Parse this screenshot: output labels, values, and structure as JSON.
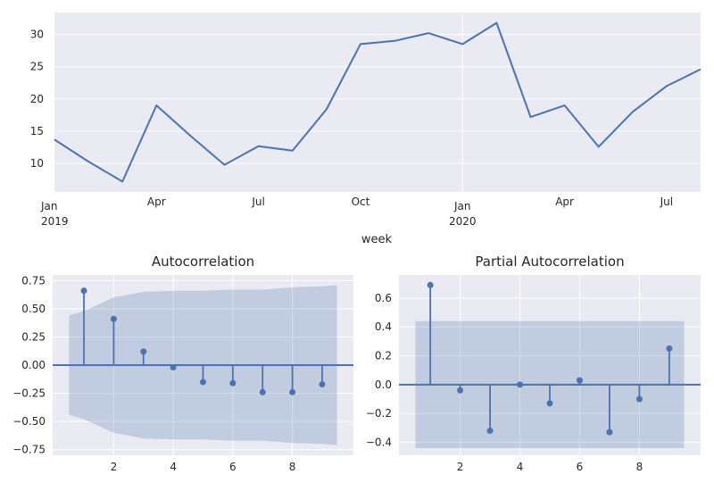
{
  "chart_data": [
    {
      "type": "line",
      "title": "",
      "xlabel": "week",
      "ylabel": "",
      "x": [
        "2019-01",
        "2019-02",
        "2019-03",
        "2019-04",
        "2019-05",
        "2019-06",
        "2019-07",
        "2019-08",
        "2019-09",
        "2019-10",
        "2019-11",
        "2019-12",
        "2020-01",
        "2020-02",
        "2020-03",
        "2020-04",
        "2020-05",
        "2020-06",
        "2020-07",
        "2020-08"
      ],
      "values": [
        13.7,
        10.3,
        7.2,
        19.0,
        14.3,
        9.8,
        12.7,
        12.0,
        18.4,
        28.5,
        29.0,
        30.2,
        28.5,
        31.8,
        17.2,
        19.0,
        12.6,
        18.0,
        22.0,
        24.6
      ],
      "xticks": [
        {
          "label": "Jan",
          "sub": "2019"
        },
        {
          "label": "Apr",
          "sub": ""
        },
        {
          "label": "Jul",
          "sub": ""
        },
        {
          "label": "Oct",
          "sub": ""
        },
        {
          "label": "Jan",
          "sub": "2020"
        },
        {
          "label": "Apr",
          "sub": ""
        },
        {
          "label": "Jul",
          "sub": ""
        }
      ],
      "yticks": [
        10,
        15,
        20,
        25,
        30
      ],
      "ylim": [
        5.6,
        33.4
      ],
      "xlim": [
        "2019-01",
        "2020-08"
      ],
      "grid": true,
      "color": "#4c72b0"
    },
    {
      "type": "stem",
      "title": "Autocorrelation",
      "xlabel": "",
      "ylabel": "",
      "x": [
        1,
        2,
        3,
        4,
        5,
        6,
        7,
        8,
        9
      ],
      "values": [
        0.66,
        0.41,
        0.12,
        -0.02,
        -0.15,
        -0.16,
        -0.24,
        -0.24,
        -0.17
      ],
      "confidence_band": {
        "x": [
          0.5,
          1,
          2,
          3,
          4,
          5,
          6,
          7,
          8,
          9,
          9.5
        ],
        "upper": [
          0.44,
          0.48,
          0.6,
          0.65,
          0.66,
          0.66,
          0.67,
          0.67,
          0.69,
          0.7,
          0.71
        ]
      },
      "xticks": [
        2,
        4,
        6,
        8
      ],
      "yticks": [
        "0.75",
        "0.50",
        "0.25",
        "0.00",
        "−0.25",
        "−0.50",
        "−0.75"
      ],
      "xlim": [
        -0.05,
        10.05
      ],
      "ylim": [
        -0.8,
        0.8
      ],
      "grid": true,
      "color": "#4c72b0"
    },
    {
      "type": "stem",
      "title": "Partial Autocorrelation",
      "xlabel": "",
      "ylabel": "",
      "x": [
        1,
        2,
        3,
        4,
        5,
        6,
        7,
        8,
        9
      ],
      "values": [
        0.69,
        -0.04,
        -0.32,
        0.0,
        -0.13,
        0.03,
        -0.33,
        -0.1,
        0.25
      ],
      "confidence_band": {
        "x": [
          0.5,
          9.5
        ],
        "upper": [
          0.44,
          0.44
        ]
      },
      "xticks": [
        2,
        4,
        6,
        8
      ],
      "yticks": [
        "0.6",
        "0.4",
        "0.2",
        "0.0",
        "−0.2",
        "−0.4"
      ],
      "xlim": [
        -0.05,
        10.05
      ],
      "ylim": [
        -0.49,
        0.76
      ],
      "grid": true,
      "color": "#4c72b0"
    }
  ]
}
